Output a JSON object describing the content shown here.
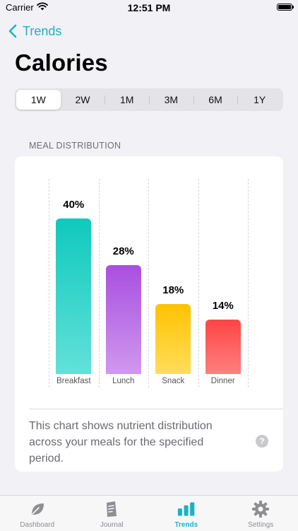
{
  "status_bar": {
    "carrier": "Carrier",
    "time": "12:51 PM"
  },
  "nav": {
    "back_label": "Trends"
  },
  "page": {
    "title": "Calories"
  },
  "ranges": {
    "options": [
      "1W",
      "2W",
      "1M",
      "3M",
      "6M",
      "1Y"
    ],
    "selected": "1W"
  },
  "section": {
    "label": "MEAL DISTRIBUTION"
  },
  "chart_data": {
    "type": "bar",
    "categories": [
      "Breakfast",
      "Lunch",
      "Snack",
      "Dinner"
    ],
    "values": [
      40,
      28,
      18,
      14
    ],
    "value_labels": [
      "40%",
      "28%",
      "18%",
      "14%"
    ],
    "ylim": [
      0,
      40
    ],
    "colors": [
      [
        "#0fc9bc",
        "#62e1da"
      ],
      [
        "#a94fe0",
        "#cf98ee"
      ],
      [
        "#ffc200",
        "#ffde5c"
      ],
      [
        "#ff4444",
        "#ff8080"
      ]
    ],
    "title": "",
    "xlabel": "",
    "ylabel": ""
  },
  "caption": {
    "text": "This chart shows nutrient distribution across your meals for the specified period."
  },
  "help_icon_text": "?",
  "tabbar": {
    "items": [
      {
        "label": "Dashboard",
        "icon": "leaf-icon"
      },
      {
        "label": "Journal",
        "icon": "journal-icon"
      },
      {
        "label": "Trends",
        "icon": "bar-chart-icon"
      },
      {
        "label": "Settings",
        "icon": "gear-icon"
      }
    ],
    "active": "Trends"
  },
  "colors": {
    "accent": "#1bb2c6",
    "background": "#f2f1f6"
  }
}
